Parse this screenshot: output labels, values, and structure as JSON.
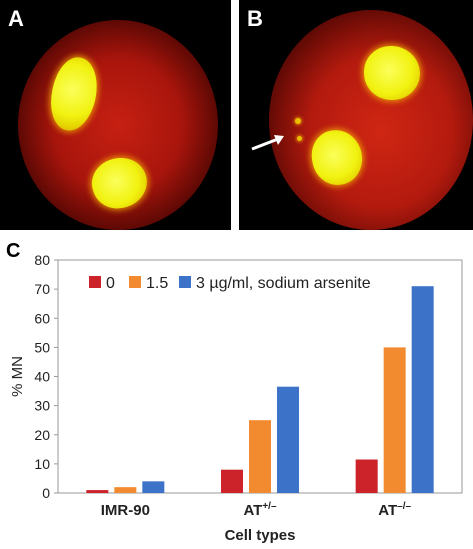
{
  "panels": {
    "a_label": "A",
    "b_label": "B",
    "c_label": "C"
  },
  "colors": {
    "background_cell": "#c21a12",
    "nucleus": "#f2f20a",
    "series_0": "#cc2229",
    "series_1_5": "#f28a30",
    "series_3": "#3c72c8"
  },
  "chart_data": {
    "type": "bar",
    "categories": [
      "IMR-90",
      "AT⁺⁄⁻",
      "AT⁻⁄⁻"
    ],
    "category_display": [
      {
        "base": "IMR-90",
        "sup": ""
      },
      {
        "base": "AT",
        "sup": "+/–"
      },
      {
        "base": "AT",
        "sup": "–/–"
      }
    ],
    "series": [
      {
        "name": "0",
        "color": "#cc2229",
        "values": [
          1,
          8,
          11.5
        ]
      },
      {
        "name": "1.5",
        "color": "#f28a30",
        "values": [
          2,
          25,
          50
        ]
      },
      {
        "name": "3 µg/ml, sodium arsenite",
        "color": "#3c72c8",
        "values": [
          4,
          36.5,
          71
        ]
      }
    ],
    "xlabel": "Cell types",
    "ylabel": "% MN",
    "ylim": [
      0,
      80
    ],
    "yticks": [
      0,
      10,
      20,
      30,
      40,
      50,
      60,
      70,
      80
    ],
    "grid": false,
    "legend_placement": "top"
  }
}
